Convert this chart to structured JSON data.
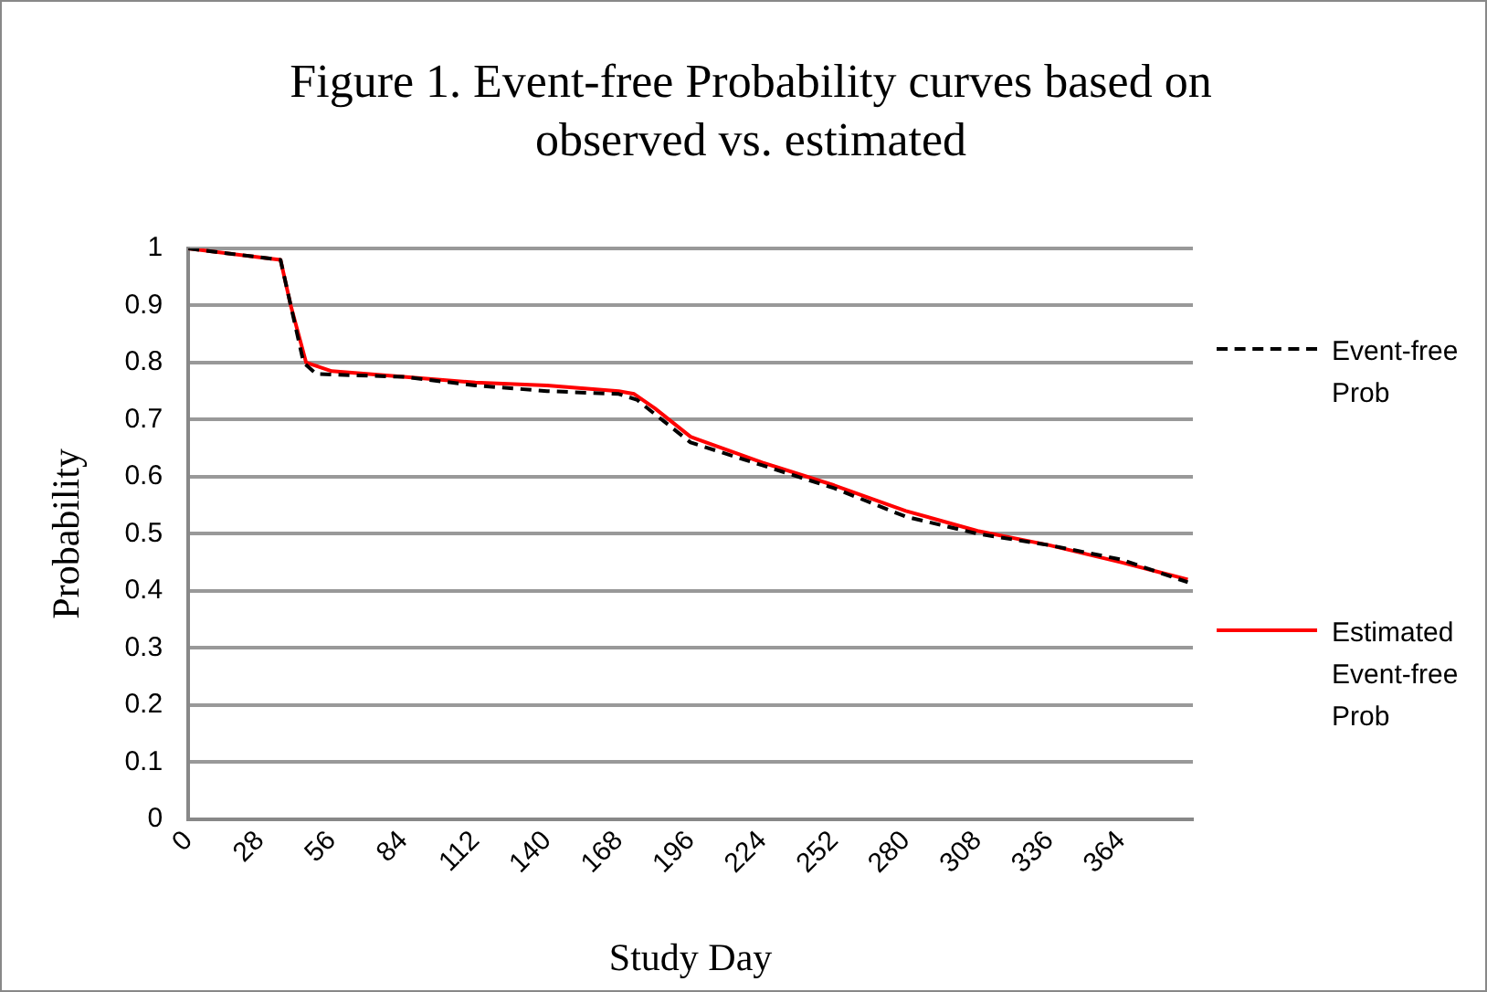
{
  "chart_data": {
    "type": "line",
    "title": "Figure 1. Event-free Probability curves based on observed vs. estimated",
    "xlabel": "Study Day",
    "ylabel": "Probability",
    "xlim": [
      0,
      392
    ],
    "xticks": [
      0,
      28,
      56,
      84,
      112,
      140,
      168,
      196,
      224,
      252,
      280,
      308,
      336,
      364
    ],
    "ylim": [
      0,
      1
    ],
    "yticks": [
      0,
      0.1,
      0.2,
      0.3,
      0.4,
      0.5,
      0.6,
      0.7,
      0.8,
      0.9,
      1
    ],
    "grid": "y",
    "legend": "right",
    "marker": "none",
    "series": [
      {
        "name": "Event-free Prob",
        "color": "#000000",
        "line_style": "dashed",
        "x": [
          0,
          36,
          40,
          45,
          50,
          84,
          112,
          140,
          168,
          175,
          182,
          196,
          224,
          252,
          280,
          308,
          336,
          364,
          390
        ],
        "values": [
          1,
          0.98,
          0.9,
          0.8,
          0.78,
          0.775,
          0.76,
          0.75,
          0.745,
          0.735,
          0.71,
          0.66,
          0.62,
          0.58,
          0.53,
          0.5,
          0.48,
          0.455,
          0.415
        ]
      },
      {
        "name": "Estimated Event-free Prob",
        "color": "#ff0000",
        "line_style": "solid",
        "x": [
          0,
          36,
          40,
          46,
          56,
          84,
          112,
          140,
          168,
          174,
          182,
          196,
          224,
          252,
          280,
          308,
          336,
          364,
          390
        ],
        "values": [
          1,
          0.98,
          0.9,
          0.8,
          0.785,
          0.775,
          0.765,
          0.76,
          0.75,
          0.745,
          0.72,
          0.67,
          0.625,
          0.585,
          0.54,
          0.505,
          0.48,
          0.45,
          0.42
        ]
      }
    ]
  }
}
